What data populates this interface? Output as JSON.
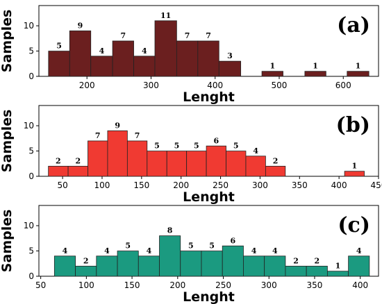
{
  "chart_data": [
    {
      "type": "bar",
      "panel_label": "(a)",
      "xlabel": "Lenght",
      "ylabel": "Samples",
      "color": "#6b1f1f",
      "xlim": [
        125,
        655
      ],
      "ylim": [
        0,
        14
      ],
      "xticks": [
        200,
        300,
        400,
        500,
        600
      ],
      "yticks": [
        0,
        5,
        10
      ],
      "bins": [
        {
          "x0": 140,
          "x1": 173,
          "value": 5
        },
        {
          "x0": 173,
          "x1": 206,
          "value": 9
        },
        {
          "x0": 206,
          "x1": 240,
          "value": 4
        },
        {
          "x0": 240,
          "x1": 273,
          "value": 7
        },
        {
          "x0": 273,
          "x1": 306,
          "value": 4
        },
        {
          "x0": 306,
          "x1": 340,
          "value": 11
        },
        {
          "x0": 340,
          "x1": 373,
          "value": 7
        },
        {
          "x0": 373,
          "x1": 406,
          "value": 7
        },
        {
          "x0": 406,
          "x1": 440,
          "value": 3
        },
        {
          "x0": 473,
          "x1": 506,
          "value": 1
        },
        {
          "x0": 540,
          "x1": 573,
          "value": 1
        },
        {
          "x0": 606,
          "x1": 640,
          "value": 1
        }
      ]
    },
    {
      "type": "bar",
      "panel_label": "(b)",
      "xlabel": "Lenght",
      "ylabel": "Samples",
      "color": "#f03a32",
      "xlim": [
        20,
        450
      ],
      "ylim": [
        0,
        14
      ],
      "xticks": [
        50,
        100,
        150,
        200,
        250,
        300,
        350,
        400,
        450
      ],
      "yticks": [
        0,
        5,
        10
      ],
      "bins": [
        {
          "x0": 32,
          "x1": 57,
          "value": 2
        },
        {
          "x0": 57,
          "x1": 82,
          "value": 2
        },
        {
          "x0": 82,
          "x1": 107,
          "value": 7
        },
        {
          "x0": 107,
          "x1": 132,
          "value": 9
        },
        {
          "x0": 132,
          "x1": 157,
          "value": 7
        },
        {
          "x0": 157,
          "x1": 182,
          "value": 5
        },
        {
          "x0": 182,
          "x1": 207,
          "value": 5
        },
        {
          "x0": 207,
          "x1": 232,
          "value": 5
        },
        {
          "x0": 232,
          "x1": 257,
          "value": 6
        },
        {
          "x0": 257,
          "x1": 282,
          "value": 5
        },
        {
          "x0": 282,
          "x1": 307,
          "value": 4
        },
        {
          "x0": 307,
          "x1": 332,
          "value": 2
        },
        {
          "x0": 407,
          "x1": 432,
          "value": 1
        }
      ]
    },
    {
      "type": "bar",
      "panel_label": "(c)",
      "xlabel": "Lenght",
      "ylabel": "Samples",
      "color": "#1b9a80",
      "xlim": [
        48,
        420
      ],
      "ylim": [
        0,
        14
      ],
      "xticks": [
        50,
        100,
        150,
        200,
        250,
        300,
        350,
        400
      ],
      "yticks": [
        0,
        5,
        10
      ],
      "bins": [
        {
          "x0": 65,
          "x1": 88,
          "value": 4
        },
        {
          "x0": 88,
          "x1": 111,
          "value": 2
        },
        {
          "x0": 111,
          "x1": 134,
          "value": 4
        },
        {
          "x0": 134,
          "x1": 157,
          "value": 5
        },
        {
          "x0": 157,
          "x1": 180,
          "value": 4
        },
        {
          "x0": 180,
          "x1": 203,
          "value": 8
        },
        {
          "x0": 203,
          "x1": 226,
          "value": 5
        },
        {
          "x0": 226,
          "x1": 249,
          "value": 5
        },
        {
          "x0": 249,
          "x1": 272,
          "value": 6
        },
        {
          "x0": 272,
          "x1": 295,
          "value": 4
        },
        {
          "x0": 295,
          "x1": 318,
          "value": 4
        },
        {
          "x0": 318,
          "x1": 341,
          "value": 2
        },
        {
          "x0": 341,
          "x1": 364,
          "value": 2
        },
        {
          "x0": 364,
          "x1": 387,
          "value": 1
        },
        {
          "x0": 387,
          "x1": 410,
          "value": 4
        }
      ]
    }
  ]
}
